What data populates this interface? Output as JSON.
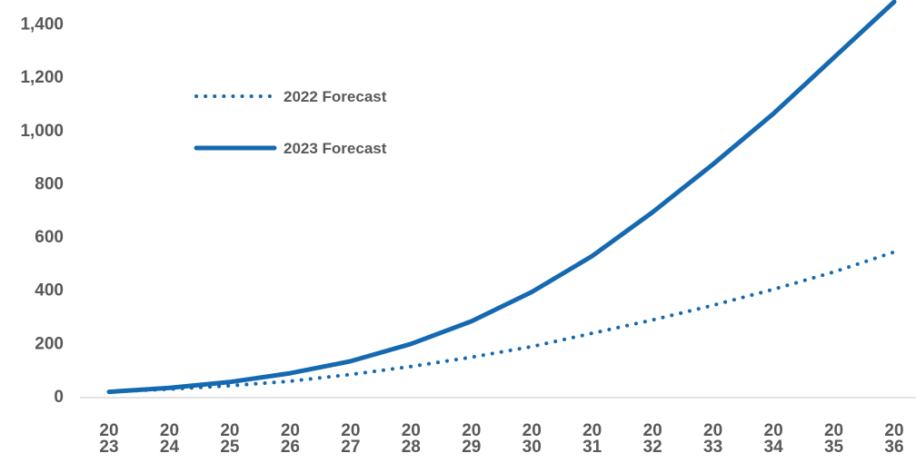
{
  "chart_data": {
    "type": "line",
    "categories": [
      "2023",
      "2024",
      "2025",
      "2026",
      "2027",
      "2028",
      "2029",
      "2030",
      "2031",
      "2032",
      "2033",
      "2034",
      "2035",
      "2036"
    ],
    "x_tick_labels": [
      [
        "20",
        "23"
      ],
      [
        "20",
        "24"
      ],
      [
        "20",
        "25"
      ],
      [
        "20",
        "26"
      ],
      [
        "20",
        "27"
      ],
      [
        "20",
        "28"
      ],
      [
        "20",
        "29"
      ],
      [
        "20",
        "30"
      ],
      [
        "20",
        "31"
      ],
      [
        "20",
        "32"
      ],
      [
        "20",
        "33"
      ],
      [
        "20",
        "34"
      ],
      [
        "20",
        "35"
      ],
      [
        "20",
        "36"
      ]
    ],
    "y_ticks": [
      0,
      200,
      400,
      600,
      800,
      1000,
      1200,
      1400
    ],
    "y_tick_labels": [
      "0",
      "200",
      "400",
      "600",
      "800",
      "1,000",
      "1,200",
      "1,400"
    ],
    "ylim": [
      0,
      1480
    ],
    "grid": false,
    "legend_position": "top-left",
    "series": [
      {
        "name": "2022 Forecast",
        "style": "dotted",
        "color": "#1569b0",
        "values": [
          15,
          25,
          38,
          55,
          80,
          110,
          145,
          185,
          235,
          285,
          340,
          400,
          465,
          540
        ]
      },
      {
        "name": "2023 Forecast",
        "style": "solid",
        "color": "#1569b0",
        "values": [
          15,
          30,
          52,
          85,
          130,
          195,
          280,
          390,
          525,
          690,
          870,
          1060,
          1270,
          1480
        ]
      }
    ]
  }
}
